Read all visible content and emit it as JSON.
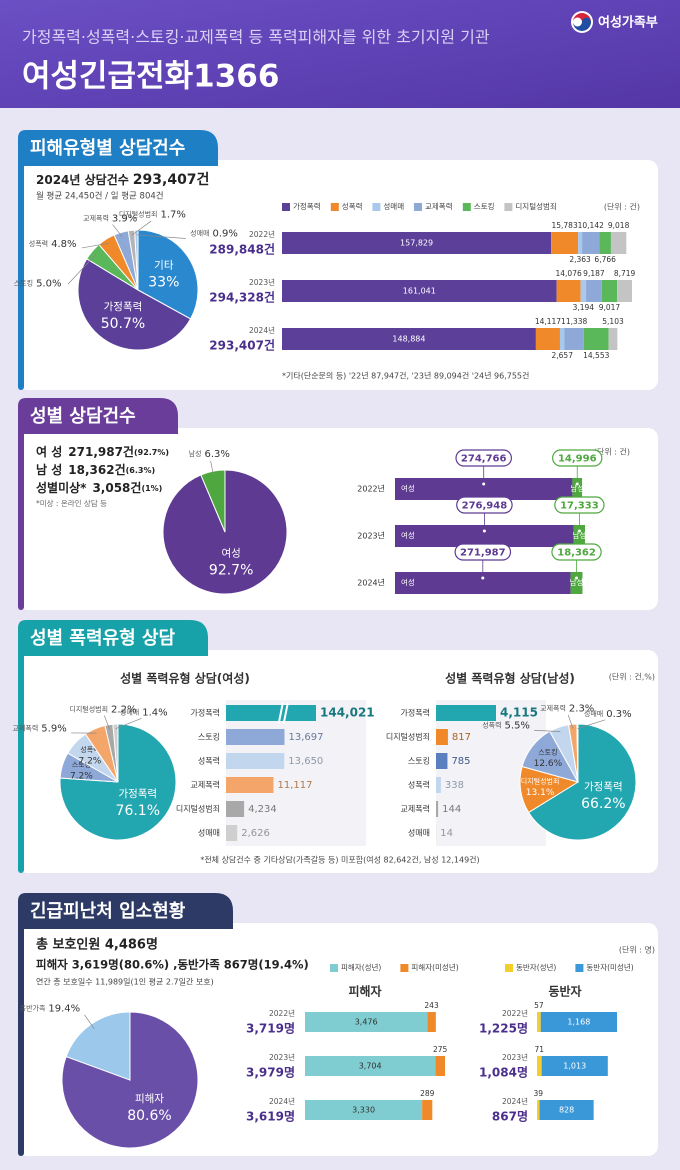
{
  "header": {
    "subtitle": "가정폭력·성폭력·스토킹·교제폭력 등 폭력피해자를 위한 초기지원 기관",
    "title": "여성긴급전화1366",
    "ministry": "여성가족부"
  },
  "sections": [
    {
      "title": "피해유형별 상담건수",
      "summary": "2024년 상담건수",
      "summary_value": "293,407건",
      "detail": "월 평균 24,450건 / 일 평균 804건",
      "note": "*기타(단순문의 등) '22년 87,947건, '23년 89,094건 '24년 96,755건"
    },
    {
      "title": "성별 상담건수",
      "rows": [
        {
          "label": "여 성",
          "value": "271,987건",
          "share": "(92.7%)"
        },
        {
          "label": "남 성",
          "value": "18,362건",
          "share": "(6.3%)"
        },
        {
          "label": "성별미상*",
          "value": "3,058건",
          "share": "(1%)"
        }
      ],
      "note": "*미상 : 온라인 상담 등"
    },
    {
      "title": "성별 폭력유형 상담",
      "note": "*전체 상담건수 중 기타상담(가족갈등 등) 미포함(여성 82,642건, 남성 12,149건)"
    },
    {
      "title": "긴급피난처 입소현황",
      "total": "총 보호인원 4,486명",
      "detail": "피해자 3,619명(80.6%) ,동반가족 867명(19.4%)",
      "days": "연간 총 보호일수 11,989일(1인 평균 2.7일간 보호)"
    }
  ],
  "chart_data": [
    {
      "type": "pie",
      "categories": [
        "기타",
        "가정폭력",
        "스토킹",
        "성폭력",
        "교제폭력",
        "디지털성범죄",
        "성매매"
      ],
      "values": [
        33,
        50.7,
        5.0,
        4.8,
        3.9,
        1.7,
        0.9
      ],
      "value_labels": [
        "33%",
        "50.7%",
        "5.0%",
        "4.8%",
        "3.9%",
        "1.7%",
        "0.9%"
      ],
      "colors": [
        "#2a88cf",
        "#5b3f99",
        "#5bb85a",
        "#f0892a",
        "#8ea8d8",
        "#b5b5b5",
        "#a9c9ec"
      ]
    },
    {
      "type": "stacked_bar",
      "legend": true,
      "unit": "(단위 : 건)",
      "categories": [
        "2022년",
        "2023년",
        "2024년"
      ],
      "totals": [
        "289,848건",
        "294,328건",
        "293,407건"
      ],
      "series": [
        {
          "name": "가정폭력",
          "color": "#5b3f99",
          "values": [
            157829,
            161041,
            148884
          ],
          "value_labels": [
            "157,829",
            "161,041",
            "148,884"
          ]
        },
        {
          "name": "성폭력",
          "color": "#f0892a",
          "values": [
            15783,
            14076,
            14117
          ],
          "value_labels": [
            "15,783",
            "14,076",
            "14,117"
          ]
        },
        {
          "name": "성매매",
          "color": "#a9c9ec",
          "values": [
            2363,
            3194,
            2657
          ],
          "value_labels": [
            "2,363",
            "3,194",
            "2,657"
          ]
        },
        {
          "name": "교제폭력",
          "color": "#8ea8d8",
          "values": [
            10142,
            9187,
            11338
          ],
          "value_labels": [
            "10,142",
            "9,187",
            "11,338"
          ]
        },
        {
          "name": "스토킹",
          "color": "#5bb85a",
          "values": [
            6766,
            9017,
            14553
          ],
          "value_labels": [
            "6,766",
            "9,017",
            "14,553"
          ]
        },
        {
          "name": "디지털성범죄",
          "color": "#c4c4c4",
          "values": [
            9018,
            8719,
            5103
          ],
          "value_labels": [
            "9,018",
            "8,719",
            "5,103"
          ]
        }
      ]
    },
    {
      "type": "pie",
      "categories": [
        "여성",
        "남성"
      ],
      "values": [
        92.7,
        6.3
      ],
      "value_labels": [
        "92.7%",
        "6.3%"
      ],
      "colors": [
        "#5e3a93",
        "#4ea83f"
      ]
    },
    {
      "type": "stacked_bar",
      "unit": "(단위 : 건)",
      "categories": [
        "2022년",
        "2023년",
        "2024년"
      ],
      "series": [
        {
          "name": "여성",
          "color": "#5e3a93",
          "values": [
            274766,
            276948,
            271987
          ],
          "value_labels": [
            "274,766",
            "276,948",
            "271,987"
          ]
        },
        {
          "name": "남성",
          "color": "#4ea83f",
          "values": [
            14996,
            17333,
            18362
          ],
          "value_labels": [
            "14,996",
            "17,333",
            "18,362"
          ]
        }
      ]
    },
    {
      "type": "pie",
      "categories": [
        "가정폭력",
        "스토킹",
        "성폭력",
        "교제폭력",
        "디지털성범죄",
        "성매매"
      ],
      "values": [
        76.1,
        7.2,
        7.2,
        5.9,
        2.2,
        1.4
      ],
      "value_labels": [
        "76.1%",
        "7.2%",
        "7.2%",
        "5.9%",
        "2.2%",
        "1.4%"
      ],
      "colors": [
        "#22a6b0",
        "#8ea8d8",
        "#c2d6ee",
        "#f4a66a",
        "#a8a8a8",
        "#cfcfcf"
      ]
    },
    {
      "type": "bar",
      "title": "성별 폭력유형 상담(여성)",
      "axis_break": true,
      "categories": [
        "가정폭력",
        "스토킹",
        "성폭력",
        "교제폭력",
        "디지털성범죄",
        "성매매"
      ],
      "values": [
        144021,
        13697,
        13650,
        11117,
        4234,
        2626
      ],
      "value_labels": [
        "144,021",
        "13,697",
        "13,650",
        "11,117",
        "4,234",
        "2,626"
      ],
      "colors": [
        "#22a6b0",
        "#8ea8d8",
        "#c2d6ee",
        "#f4a66a",
        "#a8a8a8",
        "#cfcfcf"
      ]
    },
    {
      "type": "bar",
      "title": "성별 폭력유형 상담(남성)",
      "unit": "(단위 : 건,%)",
      "categories": [
        "가정폭력",
        "디지털성범죄",
        "스토킹",
        "성폭력",
        "교제폭력",
        "성매매"
      ],
      "values": [
        4115,
        817,
        785,
        338,
        144,
        14
      ],
      "value_labels": [
        "4,115",
        "817",
        "785",
        "338",
        "144",
        "14"
      ],
      "colors": [
        "#22a6b0",
        "#f0892a",
        "#5a7fc0",
        "#c2d6ee",
        "#a8a8a8",
        "#cfcfcf"
      ]
    },
    {
      "type": "pie",
      "categories": [
        "가정폭력",
        "디지털성범죄",
        "스토킹",
        "성폭력",
        "교제폭력",
        "성매매"
      ],
      "values": [
        66.2,
        13.1,
        12.6,
        5.5,
        2.3,
        0.3
      ],
      "value_labels": [
        "66.2%",
        "13.1%",
        "12.6%",
        "5.5%",
        "2.3%",
        "0.3%"
      ],
      "colors": [
        "#22a6b0",
        "#f0892a",
        "#8ea8d8",
        "#c2d6ee",
        "#f4a66a",
        "#a8a8a8"
      ]
    },
    {
      "type": "pie",
      "categories": [
        "피해자",
        "동반가족"
      ],
      "values": [
        80.6,
        19.4
      ],
      "value_labels": [
        "80.6%",
        "19.4%"
      ],
      "colors": [
        "#6a4fa8",
        "#9cc8ec"
      ]
    },
    {
      "type": "stacked_bar",
      "title": "피해자",
      "legend": true,
      "categories": [
        "2022년",
        "2023년",
        "2024년"
      ],
      "totals": [
        "3,719명",
        "3,979명",
        "3,619명"
      ],
      "series": [
        {
          "name": "피해자(성년)",
          "color": "#7fcdd0",
          "values": [
            3476,
            3704,
            3330
          ],
          "value_labels": [
            "3,476",
            "3,704",
            "3,330"
          ]
        },
        {
          "name": "피해자(미성년)",
          "color": "#f0892a",
          "values": [
            243,
            275,
            289
          ],
          "value_labels": [
            "243",
            "275",
            "289"
          ]
        }
      ]
    },
    {
      "type": "stacked_bar",
      "title": "동반자",
      "legend": true,
      "unit": "(단위 : 명)",
      "categories": [
        "2022년",
        "2023년",
        "2024년"
      ],
      "totals": [
        "1,225명",
        "1,084명",
        "867명"
      ],
      "series": [
        {
          "name": "동반자(성년)",
          "color": "#f4cf2c",
          "values": [
            57,
            71,
            39
          ],
          "value_labels": [
            "57",
            "71",
            "39"
          ]
        },
        {
          "name": "동반자(미성년)",
          "color": "#3a97d8",
          "values": [
            1168,
            1013,
            828
          ],
          "value_labels": [
            "1,168",
            "1,013",
            "828"
          ]
        }
      ]
    }
  ]
}
